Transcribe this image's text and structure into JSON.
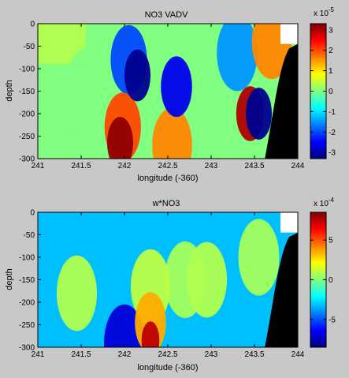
{
  "figure": {
    "background_color": "#c8c8c8",
    "land_color": "#000000",
    "missing_color": "#ffffff"
  },
  "chart_data": [
    {
      "type": "heatmap",
      "title": "NO3 VADV",
      "xlabel": "longitude (-360)",
      "ylabel": "depth",
      "xlim": [
        241,
        244
      ],
      "ylim": [
        -300,
        0
      ],
      "xticks": [
        "241",
        "241.5",
        "242",
        "242.5",
        "243",
        "243.5",
        "244"
      ],
      "yticks": [
        "0",
        "-50",
        "-100",
        "-150",
        "-200",
        "-250",
        "-300"
      ],
      "colorbar": {
        "exponent_label": "x 10",
        "exponent": "-5",
        "range": [
          -3.3,
          3.3
        ],
        "ticks": [
          "3",
          "2",
          "1",
          "0",
          "-1",
          "-2",
          "-3"
        ],
        "colormap": "jet"
      },
      "background_value": 0,
      "background_band": [
        {
          "x0": 241.0,
          "x1": 241.55,
          "y0": -90,
          "y1": 0,
          "value": 0.3
        }
      ],
      "features": [
        {
          "kind": "high",
          "x": 241.6,
          "y": -160,
          "value": 0,
          "note": "broad near-zero tongue"
        },
        {
          "kind": "low",
          "x": 242.15,
          "y": -115,
          "value": -3.2
        },
        {
          "kind": "low",
          "x": 242.05,
          "y": -80,
          "value": -2.0
        },
        {
          "kind": "low",
          "x": 242.6,
          "y": -140,
          "value": -2.6
        },
        {
          "kind": "low",
          "x": 243.3,
          "y": -65,
          "value": -1.5
        },
        {
          "kind": "low",
          "x": 243.55,
          "y": -200,
          "value": -3.2
        },
        {
          "kind": "high",
          "x": 241.95,
          "y": -265,
          "value": 3.2
        },
        {
          "kind": "high",
          "x": 241.98,
          "y": -230,
          "value": 2.0
        },
        {
          "kind": "high",
          "x": 242.55,
          "y": -270,
          "value": 1.6
        },
        {
          "kind": "high",
          "x": 243.45,
          "y": -200,
          "value": 3.0
        },
        {
          "kind": "high",
          "x": 243.7,
          "y": -40,
          "value": 1.6
        }
      ]
    },
    {
      "type": "heatmap",
      "title": "w*NO3",
      "xlabel": "longitude (-360)",
      "ylabel": "depth",
      "xlim": [
        241,
        244
      ],
      "ylim": [
        -300,
        0
      ],
      "xticks": [
        "241",
        "241.5",
        "242",
        "242.5",
        "243",
        "243.5",
        "244"
      ],
      "yticks": [
        "0",
        "-50",
        "-100",
        "-150",
        "-200",
        "-250",
        "-300"
      ],
      "colorbar": {
        "exponent_label": "x 10",
        "exponent": "-4",
        "range": [
          -8.5,
          8.5
        ],
        "ticks": [
          "5",
          "0",
          "-5"
        ],
        "colormap": "jet"
      },
      "background_value": -3.2,
      "features": [
        {
          "kind": "high",
          "x": 241.45,
          "y": -180,
          "value": 0.8
        },
        {
          "kind": "high",
          "x": 242.3,
          "y": -165,
          "value": 1.0
        },
        {
          "kind": "high",
          "x": 242.3,
          "y": -245,
          "value": 3.5
        },
        {
          "kind": "high",
          "x": 242.3,
          "y": -285,
          "value": 7.5
        },
        {
          "kind": "high",
          "x": 242.7,
          "y": -150,
          "value": 0.6
        },
        {
          "kind": "high",
          "x": 242.95,
          "y": -150,
          "value": 0.8
        },
        {
          "kind": "high",
          "x": 243.55,
          "y": -100,
          "value": 0.6
        },
        {
          "kind": "low",
          "x": 242.0,
          "y": -290,
          "value": -7.0
        }
      ]
    }
  ]
}
